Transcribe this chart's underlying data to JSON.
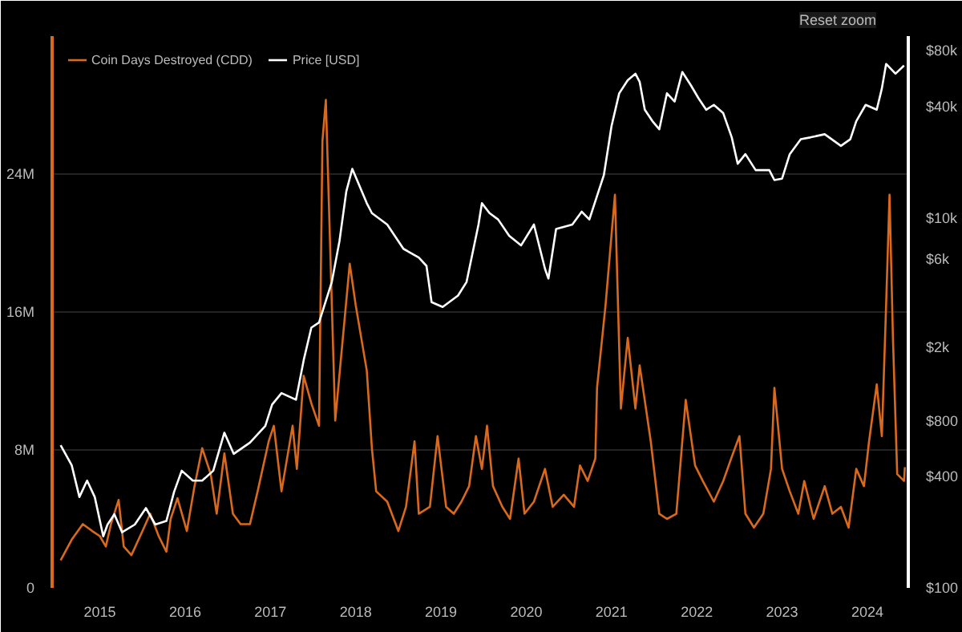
{
  "chart_data": {
    "type": "line",
    "legend": "top left",
    "grid": "y",
    "log": "y2",
    "marker": "none",
    "line_style": "solid",
    "annotations": [
      "Reset zoom"
    ],
    "xlim": [
      2014.44,
      2024.48
    ],
    "xticks": [
      {
        "value": 2015,
        "label": "2015"
      },
      {
        "value": 2016,
        "label": "2016"
      },
      {
        "value": 2017,
        "label": "2017"
      },
      {
        "value": 2018,
        "label": "2018"
      },
      {
        "value": 2019,
        "label": "2019"
      },
      {
        "value": 2020,
        "label": "2020"
      },
      {
        "value": 2021,
        "label": "2021"
      },
      {
        "value": 2022,
        "label": "2022"
      },
      {
        "value": 2023,
        "label": "2023"
      },
      {
        "value": 2024,
        "label": "2024"
      }
    ],
    "ylim": [
      0,
      32000000
    ],
    "yticks": [
      {
        "value": 0,
        "label": "0"
      },
      {
        "value": 8000000,
        "label": "8M"
      },
      {
        "value": 16000000,
        "label": "16M"
      },
      {
        "value": 24000000,
        "label": "24M"
      }
    ],
    "y2lim": [
      100,
      96000
    ],
    "y2ticks": [
      {
        "value": 100,
        "label": "$100"
      },
      {
        "value": 400,
        "label": "$400"
      },
      {
        "value": 800,
        "label": "$800"
      },
      {
        "value": 2000,
        "label": "$2k"
      },
      {
        "value": 6000,
        "label": "$6k"
      },
      {
        "value": 10000,
        "label": "$10k"
      },
      {
        "value": 40000,
        "label": "$40k"
      },
      {
        "value": 80000,
        "label": "$80k"
      }
    ],
    "series": [
      {
        "name": "Coin Days Destroyed (CDD)",
        "color": "#d9691c",
        "axis": "y",
        "x": [
          2014.54,
          2014.67,
          2014.8,
          2014.91,
          2015.0,
          2015.07,
          2015.13,
          2015.22,
          2015.28,
          2015.37,
          2015.5,
          2015.59,
          2015.69,
          2015.78,
          2015.83,
          2015.91,
          2016.02,
          2016.11,
          2016.2,
          2016.3,
          2016.37,
          2016.46,
          2016.56,
          2016.65,
          2016.76,
          2016.85,
          2016.98,
          2017.04,
          2017.13,
          2017.26,
          2017.31,
          2017.39,
          2017.48,
          2017.57,
          2017.61,
          2017.65,
          2017.76,
          2017.93,
          2018.0,
          2018.13,
          2018.19,
          2018.24,
          2018.37,
          2018.5,
          2018.59,
          2018.69,
          2018.74,
          2018.87,
          2018.96,
          2019.06,
          2019.15,
          2019.24,
          2019.33,
          2019.41,
          2019.48,
          2019.54,
          2019.61,
          2019.72,
          2019.81,
          2019.91,
          2019.98,
          2020.09,
          2020.22,
          2020.31,
          2020.44,
          2020.56,
          2020.63,
          2020.72,
          2020.81,
          2020.83,
          2020.93,
          2021.04,
          2021.11,
          2021.19,
          2021.28,
          2021.33,
          2021.46,
          2021.56,
          2021.65,
          2021.76,
          2021.87,
          2021.98,
          2022.07,
          2022.2,
          2022.31,
          2022.41,
          2022.5,
          2022.57,
          2022.67,
          2022.78,
          2022.87,
          2022.91,
          2023.0,
          2023.09,
          2023.19,
          2023.26,
          2023.37,
          2023.5,
          2023.59,
          2023.69,
          2023.78,
          2023.87,
          2023.96,
          2024.02,
          2024.11,
          2024.17,
          2024.22,
          2024.26,
          2024.3,
          2024.35,
          2024.43,
          2024.44
        ],
        "values": [
          1600000,
          2800000,
          3700000,
          3300000,
          3000000,
          2400000,
          3700000,
          5100000,
          2400000,
          1900000,
          3300000,
          4300000,
          3000000,
          2100000,
          4000000,
          5200000,
          3300000,
          5900000,
          8100000,
          6600000,
          4300000,
          7800000,
          4300000,
          3700000,
          3700000,
          5600000,
          8500000,
          9400000,
          5600000,
          9400000,
          6900000,
          12300000,
          10700000,
          9400000,
          25900000,
          28300000,
          9700000,
          18800000,
          16400000,
          12600000,
          8100000,
          5600000,
          5000000,
          3300000,
          4700000,
          8500000,
          4300000,
          4700000,
          8800000,
          4700000,
          4300000,
          5000000,
          5900000,
          8800000,
          6900000,
          9400000,
          5900000,
          4700000,
          4000000,
          7500000,
          4300000,
          5000000,
          6900000,
          4700000,
          5400000,
          4700000,
          7100000,
          6200000,
          7500000,
          11600000,
          16400000,
          22800000,
          10400000,
          14500000,
          10400000,
          12900000,
          8500000,
          4300000,
          4000000,
          4300000,
          10900000,
          7100000,
          6200000,
          5000000,
          6200000,
          7600000,
          8800000,
          4300000,
          3500000,
          4300000,
          6900000,
          11600000,
          6900000,
          5600000,
          4300000,
          6200000,
          4000000,
          5900000,
          4300000,
          4700000,
          3500000,
          6900000,
          5900000,
          8500000,
          11800000,
          8800000,
          16400000,
          22800000,
          14500000,
          6600000,
          6200000,
          7000000
        ]
      },
      {
        "name": "Price [USD]",
        "color": "#ffffff",
        "axis": "y2",
        "x": [
          2014.54,
          2014.67,
          2014.76,
          2014.85,
          2014.94,
          2015.04,
          2015.09,
          2015.17,
          2015.26,
          2015.41,
          2015.54,
          2015.65,
          2015.78,
          2015.87,
          2015.96,
          2016.09,
          2016.2,
          2016.33,
          2016.46,
          2016.57,
          2016.76,
          2016.94,
          2017.02,
          2017.13,
          2017.3,
          2017.39,
          2017.48,
          2017.57,
          2017.63,
          2017.72,
          2017.81,
          2017.89,
          2017.96,
          2018.13,
          2018.19,
          2018.37,
          2018.56,
          2018.74,
          2018.83,
          2018.89,
          2019.02,
          2019.2,
          2019.3,
          2019.44,
          2019.48,
          2019.57,
          2019.67,
          2019.8,
          2019.94,
          2020.09,
          2020.22,
          2020.26,
          2020.35,
          2020.54,
          2020.65,
          2020.74,
          2020.91,
          2021.0,
          2021.09,
          2021.19,
          2021.28,
          2021.33,
          2021.39,
          2021.48,
          2021.56,
          2021.65,
          2021.74,
          2021.83,
          2021.93,
          2022.02,
          2022.11,
          2022.2,
          2022.31,
          2022.41,
          2022.48,
          2022.57,
          2022.69,
          2022.85,
          2022.91,
          2023.0,
          2023.09,
          2023.22,
          2023.33,
          2023.5,
          2023.69,
          2023.8,
          2023.87,
          2023.98,
          2024.11,
          2024.17,
          2024.22,
          2024.33,
          2024.43
        ],
        "values": [
          590,
          460,
          310,
          380,
          310,
          190,
          220,
          250,
          200,
          220,
          270,
          220,
          230,
          330,
          430,
          380,
          380,
          430,
          690,
          530,
          610,
          750,
          980,
          1130,
          1040,
          1700,
          2550,
          2720,
          3330,
          4500,
          7500,
          13900,
          18400,
          12000,
          10600,
          9200,
          6800,
          6100,
          5500,
          3500,
          3300,
          3800,
          4500,
          9200,
          12000,
          10600,
          9800,
          8000,
          7100,
          9200,
          5300,
          4700,
          8700,
          9200,
          10800,
          9800,
          17000,
          31300,
          47100,
          55400,
          60100,
          54300,
          38400,
          33300,
          30100,
          47100,
          42500,
          61400,
          52100,
          44300,
          38400,
          40800,
          36800,
          27200,
          19600,
          22100,
          18100,
          18100,
          16000,
          16300,
          22100,
          26600,
          27200,
          28300,
          24500,
          26600,
          33300,
          40800,
          38400,
          50000,
          67900,
          60100,
          66500
        ]
      }
    ]
  }
}
